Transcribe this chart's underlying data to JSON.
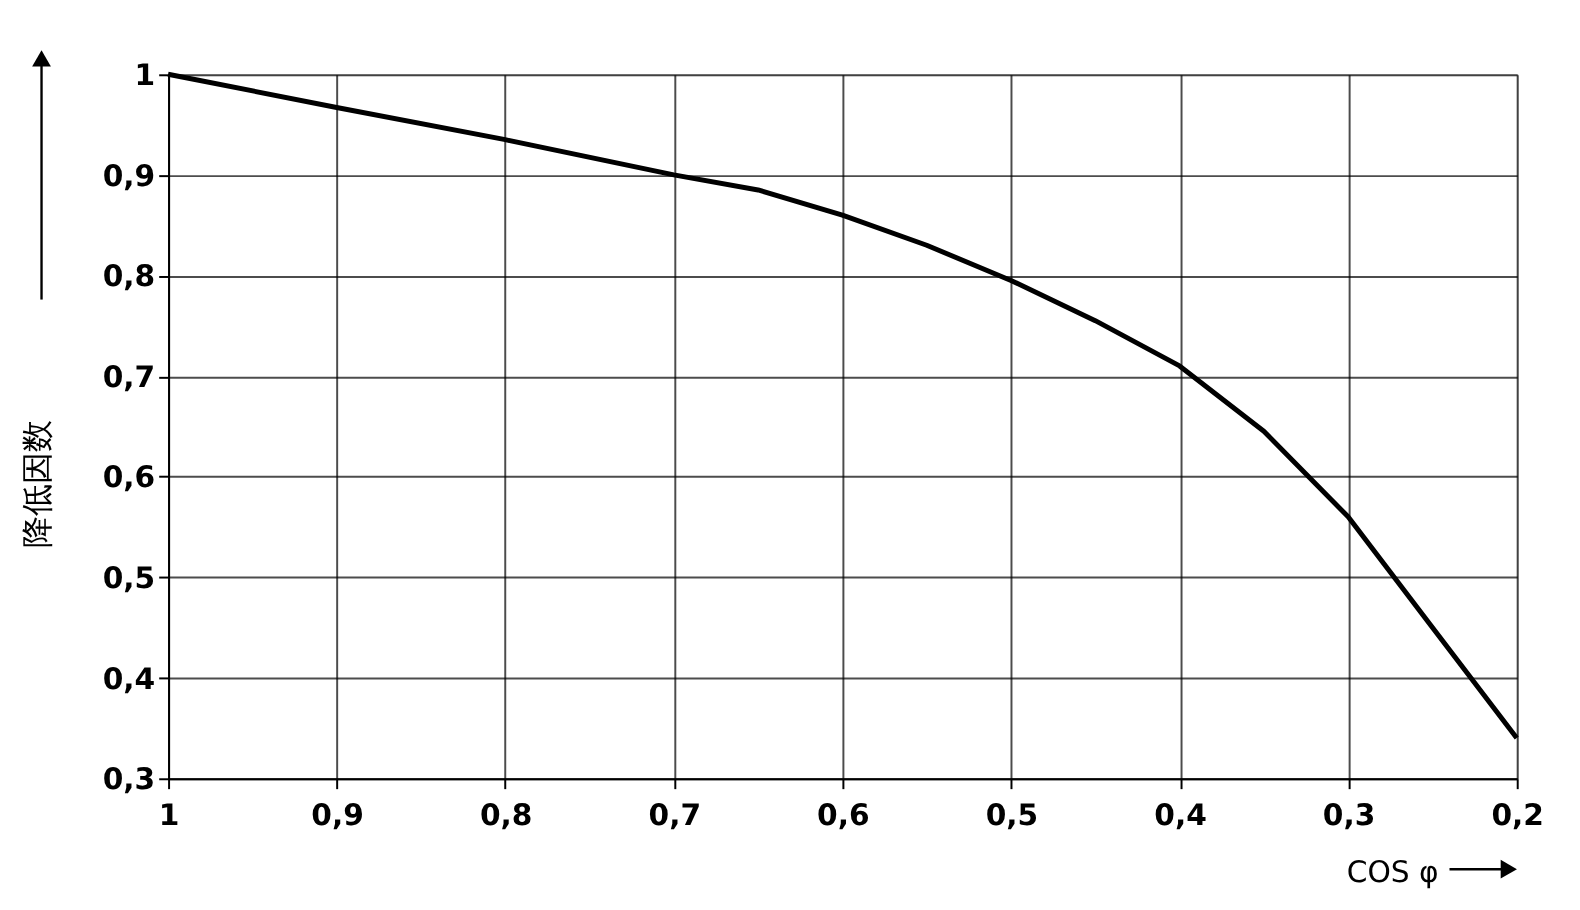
{
  "chart_data": {
    "type": "line",
    "xlabel": "COS φ",
    "ylabel": "降低因数",
    "x": [
      1,
      0.9,
      0.8,
      0.7,
      0.65,
      0.6,
      0.55,
      0.5,
      0.45,
      0.4,
      0.35,
      0.3,
      0.25,
      0.2
    ],
    "series": [
      {
        "color": "#000000",
        "values": [
          1,
          0.967,
          0.935,
          0.9,
          0.885,
          0.86,
          0.83,
          0.795,
          0.755,
          0.71,
          0.645,
          0.56,
          0.45,
          0.34
        ]
      }
    ],
    "xlim": [
      1,
      0.2
    ],
    "ylim": [
      0.3,
      1
    ],
    "xticks": [
      1,
      {
        "value": 0.9,
        "label": "0,9"
      },
      {
        "value": 0.8,
        "label": "0,8"
      },
      {
        "value": 0.7,
        "label": "0,7"
      },
      {
        "value": 0.6,
        "label": "0,6"
      },
      {
        "value": 0.5,
        "label": "0,5"
      },
      {
        "value": 0.4,
        "label": "0,4"
      },
      {
        "value": 0.3,
        "label": "0,3"
      },
      {
        "value": 0.2,
        "label": "0,2"
      }
    ],
    "yticks": [
      {
        "value": 0.3,
        "label": "0,3"
      },
      {
        "value": 0.4,
        "label": "0,4"
      },
      {
        "value": 0.5,
        "label": "0,5"
      },
      {
        "value": 0.6,
        "label": "0,6"
      },
      {
        "value": 0.7,
        "label": "0,7"
      },
      {
        "value": 0.8,
        "label": "0,8"
      },
      {
        "value": 0.9,
        "label": "0,9"
      },
      1
    ],
    "grid": true,
    "marker": "none",
    "line_style": "solid"
  }
}
